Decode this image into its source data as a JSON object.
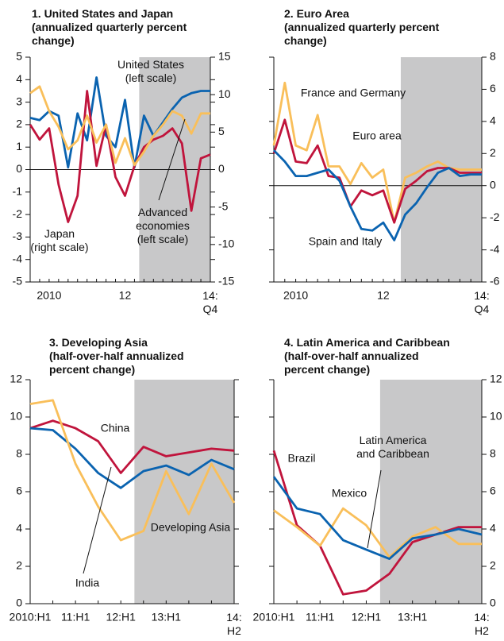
{
  "chart_data": [
    {
      "type": "line",
      "title": "1. United States and Japan\n(annualized quarterly percent\nchange)",
      "categories": [
        null,
        null,
        "2010",
        null,
        null,
        null,
        null,
        null,
        null,
        null,
        "12",
        null,
        null,
        null,
        null,
        null,
        null,
        null,
        null,
        "14:\nQ4"
      ],
      "ylim": [
        -5,
        5
      ],
      "yticks": [
        -5,
        -4,
        -3,
        -2,
        -1,
        0,
        1,
        2,
        3,
        4,
        5
      ],
      "y2lim": [
        -15,
        15
      ],
      "y2ticks": [
        -15,
        -10,
        -5,
        0,
        5,
        10,
        15
      ],
      "series": [
        {
          "name": "United States\n(left scale)",
          "color": "#0a63b0",
          "values": [
            2.3,
            2.2,
            2.6,
            2.4,
            0.1,
            2.5,
            1.3,
            4.1,
            1.5,
            1.0,
            3.1,
            0.1,
            2.4,
            1.5,
            2.1,
            2.7,
            3.2,
            3.4,
            3.5,
            3.5
          ]
        },
        {
          "name": "Japan\n(right scale)",
          "color": "#c0143c",
          "axis": "y2",
          "values": [
            6,
            4,
            5.5,
            -2,
            -7,
            -3.5,
            10.5,
            0.5,
            6,
            -1,
            -3.5,
            0.5,
            3,
            4,
            4.5,
            5.5,
            3.5,
            -5.5,
            1.5,
            2
          ]
        },
        {
          "name": "Advanced\neconomies\n(left scale)",
          "color": "#f9bf5a",
          "values": [
            3.4,
            3.7,
            2.6,
            1.9,
            0.9,
            1.3,
            2.4,
            1.2,
            2.0,
            0.3,
            1.4,
            0.2,
            0.8,
            1.5,
            2.0,
            2.6,
            2.4,
            1.6,
            2.5,
            2.5
          ]
        }
      ]
    },
    {
      "type": "line",
      "title": "2. Euro Area\n(annualized quarterly percent\nchange)",
      "categories": [
        null,
        null,
        "2010",
        null,
        null,
        null,
        null,
        null,
        null,
        null,
        "12",
        null,
        null,
        null,
        null,
        null,
        null,
        null,
        null,
        "14:\nQ4"
      ],
      "ylim": [
        -6,
        8
      ],
      "yticks": [
        -6,
        -4,
        -2,
        0,
        2,
        4,
        6,
        8
      ],
      "y_axis_side": "right",
      "series": [
        {
          "name": "France and Germany",
          "color": "#f9bf5a",
          "values": [
            2.5,
            6.4,
            2.5,
            2.2,
            4.4,
            1.2,
            1.2,
            0.1,
            1.4,
            0.5,
            1.0,
            -2.3,
            0.5,
            0.8,
            1.2,
            1.5,
            1.1,
            1.0,
            1.0,
            1.0
          ]
        },
        {
          "name": "Euro area",
          "color": "#c0143c",
          "values": [
            2.0,
            4.1,
            1.5,
            1.4,
            2.5,
            0.6,
            0.5,
            -1.3,
            -0.3,
            -0.6,
            -0.3,
            -2.3,
            -0.2,
            0.3,
            0.9,
            1.1,
            1.1,
            0.8,
            0.8,
            0.8
          ]
        },
        {
          "name": "Spain and Italy",
          "color": "#0a63b0",
          "values": [
            2.2,
            1.5,
            0.6,
            0.6,
            0.8,
            1.0,
            0.3,
            -1.3,
            -2.7,
            -2.8,
            -2.3,
            -3.4,
            -1.8,
            -1.1,
            -0.1,
            0.8,
            1.1,
            0.6,
            0.7,
            0.7
          ]
        }
      ]
    },
    {
      "type": "line",
      "title": "3. Developing Asia\n(half-over-half annualized\npercent change)",
      "categories": [
        "2010:H1",
        null,
        "11:H1",
        null,
        "12:H1",
        null,
        "13:H1",
        null,
        null,
        "14:\nH2"
      ],
      "ylim": [
        0,
        12
      ],
      "yticks": [
        0,
        2,
        4,
        6,
        8,
        10,
        12
      ],
      "y_axis_side": "left",
      "series": [
        {
          "name": "China",
          "color": "#c0143c",
          "values": [
            9.4,
            9.8,
            9.4,
            8.7,
            7.0,
            8.4,
            7.9,
            8.1,
            8.3,
            8.2
          ]
        },
        {
          "name": "Developing Asia",
          "color": "#0a63b0",
          "values": [
            9.4,
            9.3,
            8.3,
            7.0,
            6.2,
            7.1,
            7.4,
            6.9,
            7.7,
            7.2
          ]
        },
        {
          "name": "India",
          "color": "#f9bf5a",
          "values": [
            10.7,
            10.9,
            7.5,
            5.2,
            3.4,
            3.9,
            7.1,
            4.8,
            7.5,
            5.4
          ]
        }
      ]
    },
    {
      "type": "line",
      "title": "4. Latin America and Caribbean\n(half-over-half annualized\npercent change)",
      "categories": [
        "2010:H1",
        null,
        "11:H1",
        null,
        "12:H1",
        null,
        "13:H1",
        null,
        null,
        "14:\nH2"
      ],
      "ylim": [
        0,
        12
      ],
      "yticks": [
        0,
        2,
        4,
        6,
        8,
        10,
        12
      ],
      "y_axis_side": "right",
      "series": [
        {
          "name": "Brazil",
          "color": "#c0143c",
          "values": [
            8.2,
            4.2,
            3.1,
            0.5,
            0.7,
            1.6,
            3.3,
            3.7,
            4.1,
            4.1
          ]
        },
        {
          "name": "Mexico",
          "color": "#f9bf5a",
          "values": [
            5.0,
            4.1,
            3.1,
            5.1,
            4.2,
            2.5,
            3.6,
            4.1,
            3.2,
            3.2
          ]
        },
        {
          "name": "Latin America\nand Caribbean",
          "color": "#0a63b0",
          "values": [
            6.8,
            5.1,
            4.8,
            3.4,
            2.9,
            2.4,
            3.5,
            3.7,
            4.0,
            3.7
          ]
        }
      ]
    }
  ]
}
